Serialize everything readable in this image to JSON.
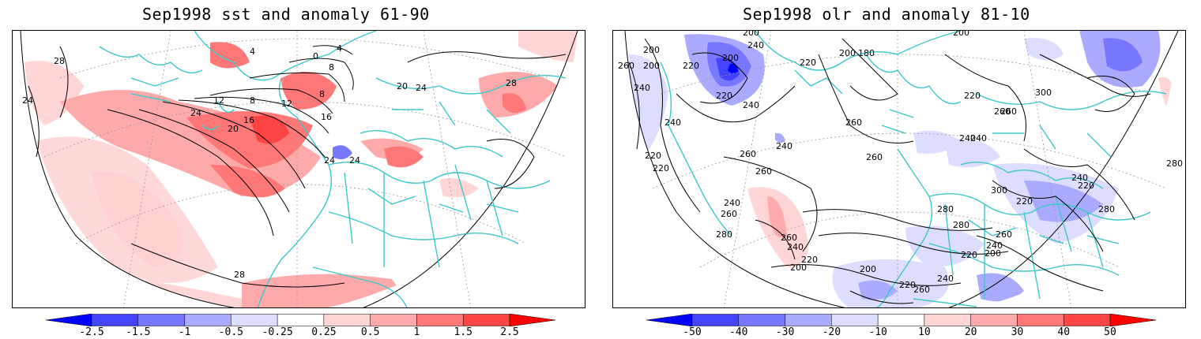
{
  "panels": [
    {
      "title": "Sep1998 sst and anomaly 61-90",
      "contour_labels": [
        "28",
        "24",
        "4",
        "0",
        "4",
        "8",
        "8",
        "12",
        "8",
        "12",
        "24",
        "16",
        "16",
        "20",
        "20",
        "24",
        "28",
        "24",
        "24",
        "28"
      ],
      "colorbar": {
        "labels": [
          "-2.5",
          "-1.5",
          "-1",
          "-0.5",
          "-0.25",
          "0.25",
          "0.5",
          "1",
          "1.5",
          "2.5"
        ],
        "colors": [
          "#0000ff",
          "#4444ff",
          "#7777ff",
          "#aaaaff",
          "#ddddff",
          "#ffffff",
          "#ffd5d5",
          "#ffaaaa",
          "#ff7777",
          "#ff4444",
          "#ff0000"
        ]
      }
    },
    {
      "title": "Sep1998 olr and anomaly 81-10",
      "contour_labels": [
        "200",
        "260",
        "200",
        "200",
        "180",
        "200",
        "220",
        "240",
        "200",
        "200",
        "220",
        "240",
        "240",
        "220",
        "300",
        "260",
        "220",
        "240",
        "240",
        "260",
        "220",
        "260",
        "240",
        "220",
        "240",
        "260",
        "260",
        "280",
        "240",
        "220",
        "300",
        "240",
        "280",
        "260",
        "280",
        "280",
        "260",
        "220",
        "260",
        "240",
        "240",
        "280",
        "200",
        "220",
        "220",
        "200",
        "220",
        "240",
        "260",
        "260",
        "200"
      ],
      "colorbar": {
        "labels": [
          "-50",
          "-40",
          "-30",
          "-20",
          "-10",
          "10",
          "20",
          "30",
          "40",
          "50"
        ],
        "colors": [
          "#0000ff",
          "#4444ff",
          "#7777ff",
          "#aaaaff",
          "#ddddff",
          "#ffffff",
          "#ffd5d5",
          "#ffaaaa",
          "#ff7777",
          "#ff4444",
          "#ff0000"
        ]
      }
    }
  ],
  "colors": {
    "coastline": "#3cc8c8",
    "contour": "#000000",
    "graticule": "#999999"
  }
}
